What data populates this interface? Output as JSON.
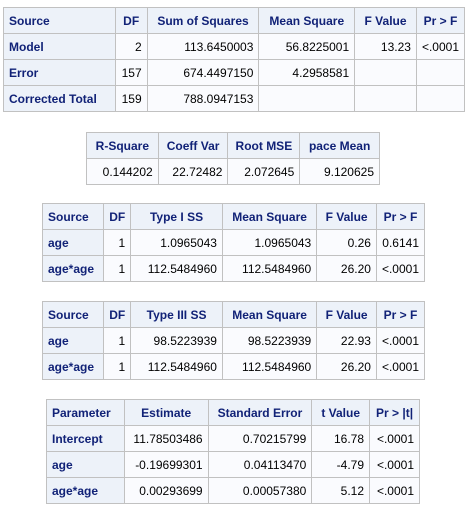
{
  "anova": {
    "headers": [
      "Source",
      "DF",
      "Sum of Squares",
      "Mean Square",
      "F Value",
      "Pr > F"
    ],
    "rows": [
      [
        "Model",
        "2",
        "113.6450003",
        "56.8225001",
        "13.23",
        "<.0001"
      ],
      [
        "Error",
        "157",
        "674.4497150",
        "4.2958581",
        "",
        ""
      ],
      [
        "Corrected Total",
        "159",
        "788.0947153",
        "",
        "",
        ""
      ]
    ]
  },
  "fit": {
    "headers": [
      "R-Square",
      "Coeff Var",
      "Root MSE",
      "pace Mean"
    ],
    "rows": [
      [
        "0.144202",
        "22.72482",
        "2.072645",
        "9.120625"
      ]
    ]
  },
  "type1": {
    "headers": [
      "Source",
      "DF",
      "Type I SS",
      "Mean Square",
      "F Value",
      "Pr > F"
    ],
    "rows": [
      [
        "age",
        "1",
        "1.0965043",
        "1.0965043",
        "0.26",
        "0.6141"
      ],
      [
        "age*age",
        "1",
        "112.5484960",
        "112.5484960",
        "26.20",
        "<.0001"
      ]
    ]
  },
  "type3": {
    "headers": [
      "Source",
      "DF",
      "Type III SS",
      "Mean Square",
      "F Value",
      "Pr > F"
    ],
    "rows": [
      [
        "age",
        "1",
        "98.5223939",
        "98.5223939",
        "22.93",
        "<.0001"
      ],
      [
        "age*age",
        "1",
        "112.5484960",
        "112.5484960",
        "26.20",
        "<.0001"
      ]
    ]
  },
  "params": {
    "headers": [
      "Parameter",
      "Estimate",
      "Standard Error",
      "t Value",
      "Pr > |t|"
    ],
    "rows": [
      [
        "Intercept",
        "11.78503486",
        "0.70215799",
        "16.78",
        "<.0001"
      ],
      [
        "age",
        "-0.19699301",
        "0.04113470",
        "-4.79",
        "<.0001"
      ],
      [
        "age*age",
        "0.00293699",
        "0.00057380",
        "5.12",
        "<.0001"
      ]
    ]
  }
}
